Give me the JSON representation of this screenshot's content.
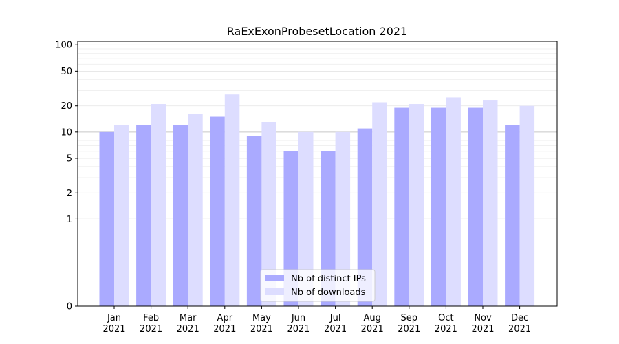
{
  "chart_data": {
    "type": "bar",
    "title": "RaExExonProbesetLocation 2021",
    "xlabel": "",
    "ylabel": "",
    "yscale": "symlog",
    "ylim": [
      0,
      110
    ],
    "yticks": [
      0,
      1,
      2,
      5,
      10,
      20,
      50,
      100
    ],
    "ytick_labels": [
      "0",
      "1",
      "2",
      "5",
      "10",
      "20",
      "50",
      "100"
    ],
    "categories": [
      {
        "month": "Jan",
        "year": "2021"
      },
      {
        "month": "Feb",
        "year": "2021"
      },
      {
        "month": "Mar",
        "year": "2021"
      },
      {
        "month": "Apr",
        "year": "2021"
      },
      {
        "month": "May",
        "year": "2021"
      },
      {
        "month": "Jun",
        "year": "2021"
      },
      {
        "month": "Jul",
        "year": "2021"
      },
      {
        "month": "Aug",
        "year": "2021"
      },
      {
        "month": "Sep",
        "year": "2021"
      },
      {
        "month": "Oct",
        "year": "2021"
      },
      {
        "month": "Nov",
        "year": "2021"
      },
      {
        "month": "Dec",
        "year": "2021"
      }
    ],
    "series": [
      {
        "name": "Nb of distinct IPs",
        "color": "#aaaaff",
        "values": [
          10,
          12,
          12,
          15,
          9,
          6,
          6,
          11,
          19,
          19,
          19,
          12
        ]
      },
      {
        "name": "Nb of downloads",
        "color": "#ddddff",
        "values": [
          12,
          21,
          16,
          27,
          13,
          10,
          10,
          22,
          21,
          25,
          23,
          20
        ]
      }
    ],
    "grid": true,
    "legend_position": "lower-center"
  }
}
